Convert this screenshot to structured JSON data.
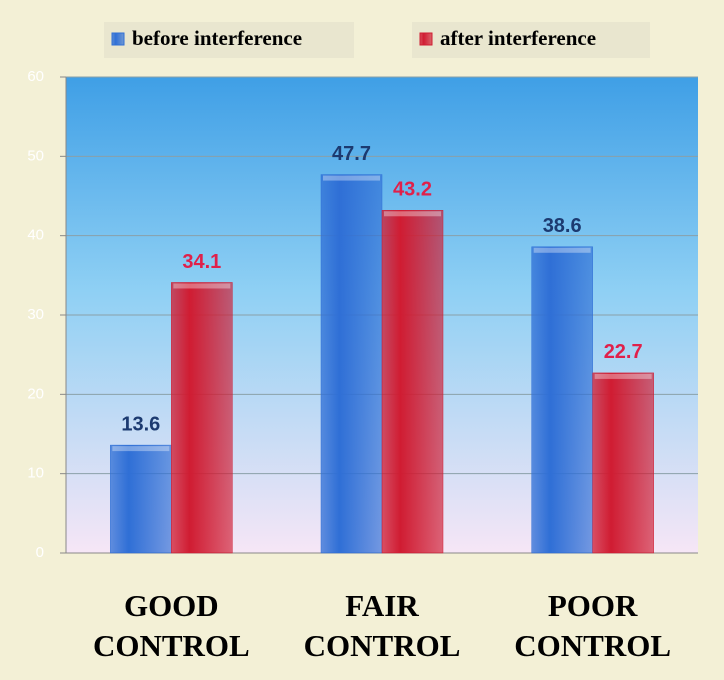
{
  "chart_data": {
    "type": "bar",
    "categories": [
      "GOOD CONTROL",
      "FAIR CONTROL",
      "POOR CONTROL"
    ],
    "series": [
      {
        "name": "before interference",
        "color": "#2f6fd6",
        "label_color": "#1c3a70",
        "values": [
          13.6,
          47.7,
          38.6
        ]
      },
      {
        "name": "after interference",
        "color": "#d01c32",
        "label_color": "#e0204a",
        "values": [
          34.1,
          43.2,
          22.7
        ]
      }
    ],
    "ylim": [
      0,
      60
    ],
    "yticks": [
      0,
      10,
      20,
      30,
      40,
      50,
      60
    ],
    "grid": true,
    "legend": "top"
  }
}
